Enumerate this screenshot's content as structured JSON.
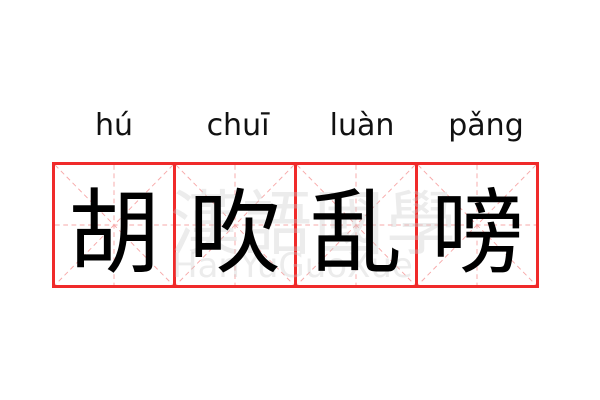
{
  "characters": [
    {
      "hanzi": "胡",
      "pinyin": "hú"
    },
    {
      "hanzi": "吹",
      "pinyin": "chuī"
    },
    {
      "hanzi": "乱",
      "pinyin": "luàn"
    },
    {
      "hanzi": "嗙",
      "pinyin": "pǎng"
    }
  ],
  "watermark": {
    "chinese": "漢語國學",
    "latin": "HanYuGuoXue"
  },
  "colors": {
    "border": "#f02a2a",
    "guide": "#f7a8a8",
    "text": "#000000"
  }
}
